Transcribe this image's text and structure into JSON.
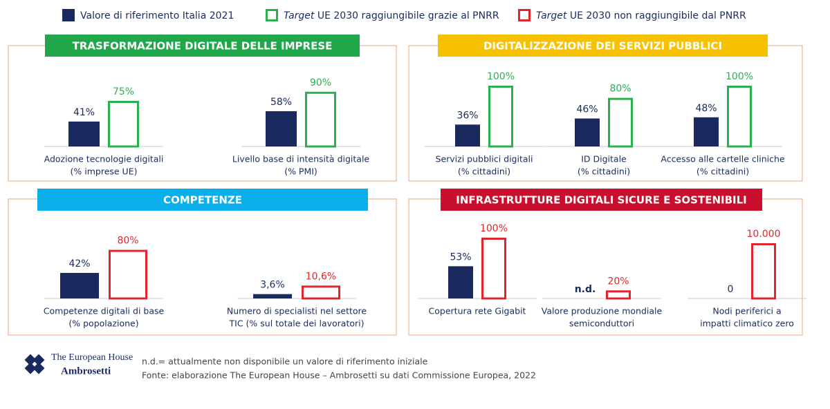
{
  "legend": [
    {
      "name": "Valore di riferimento Italia 2021",
      "color": "#1b2a5e",
      "outline": false
    },
    {
      "emphasis": "Target",
      "name": "UE 2030 raggiungibile grazie al PNRR",
      "color": "#2bb04f",
      "outline": true
    },
    {
      "emphasis": "Target",
      "name": "UE 2030 non raggiungibile dal PNRR",
      "color": "#e3262d",
      "outline": true
    }
  ],
  "chart_data": [
    {
      "type": "bar",
      "title": "TRASFORMAZIONE DIGITALE DELLE IMPRESE",
      "color": "#1fa74a",
      "categories": [
        [
          "Adozione tecnologie digitali",
          "(% imprese UE)"
        ],
        [
          "Livello base di intensità digitale",
          "(% PMI)"
        ]
      ],
      "ylims": [
        [
          0,
          100
        ],
        [
          0,
          100
        ]
      ],
      "series": [
        {
          "color": "#1b2a5e",
          "outline": false,
          "values": [
            41,
            58
          ],
          "value_labels": [
            "41%",
            "58%"
          ]
        },
        {
          "color": "#2bb04f",
          "outline": true,
          "values": [
            75,
            90
          ],
          "value_labels": [
            "75%",
            "90%"
          ]
        }
      ]
    },
    {
      "type": "bar",
      "title": "DIGITALIZZAZIONE DEI SERVIZI PUBBLICI",
      "color": "#f8c100",
      "categories": [
        [
          "Servizi pubblici digitali",
          "(% cittadini)"
        ],
        [
          "ID Digitale",
          "(% cittadini)"
        ],
        [
          "Accesso alle cartelle cliniche",
          "(% cittadini)"
        ]
      ],
      "ylims": [
        [
          0,
          100
        ],
        [
          0,
          100
        ],
        [
          0,
          100
        ]
      ],
      "series": [
        {
          "color": "#1b2a5e",
          "outline": false,
          "values": [
            36,
            46,
            48
          ],
          "value_labels": [
            "36%",
            "46%",
            "48%"
          ]
        },
        {
          "color": "#2bb04f",
          "outline": true,
          "values": [
            100,
            80,
            100
          ],
          "value_labels": [
            "100%",
            "80%",
            "100%"
          ]
        }
      ]
    },
    {
      "type": "bar",
      "title": "COMPETENZE",
      "color": "#0aaee8",
      "categories": [
        [
          "Competenze digitali di base",
          "(% popolazione)"
        ],
        [
          "Numero di specialisti nel settore",
          "TIC (% sul totale dei lavoratori)"
        ]
      ],
      "ylims": [
        [
          0,
          100
        ],
        [
          0,
          50
        ]
      ],
      "series": [
        {
          "color": "#1b2a5e",
          "outline": false,
          "values": [
            42,
            3.6
          ],
          "value_labels": [
            "42%",
            "3,6%"
          ]
        },
        {
          "color": "#e3262d",
          "outline": true,
          "values": [
            80,
            10.6
          ],
          "value_labels": [
            "80%",
            "10,6%"
          ]
        }
      ]
    },
    {
      "type": "bar",
      "title": "INFRASTRUTTURE DIGITALI SICURE E SOSTENIBILI",
      "color": "#c8102e",
      "categories": [
        [
          "Copertura rete Gigabit"
        ],
        [
          "Valore produzione mondiale",
          "semiconduttori"
        ],
        [
          "Nodi periferici a",
          "impatti climatico zero"
        ]
      ],
      "ylims": [
        [
          0,
          100
        ],
        [
          0,
          150
        ],
        [
          0,
          11000
        ]
      ],
      "series": [
        {
          "color": "#1b2a5e",
          "outline": false,
          "values": [
            53,
            null,
            0
          ],
          "value_labels": [
            "53%",
            "n.d.",
            "0"
          ]
        },
        {
          "color": "#e3262d",
          "outline": true,
          "values": [
            100,
            20,
            10000
          ],
          "value_labels": [
            "100%",
            "20%",
            "10.000"
          ]
        }
      ]
    }
  ],
  "footer": {
    "logo": [
      "The European House",
      "Ambrosetti"
    ],
    "notes": [
      "n.d.= attualmente non disponibile un valore di riferimento iniziale",
      "Fonte: elaborazione The European House – Ambrosetti su dati Commissione Europea, 2022"
    ]
  }
}
